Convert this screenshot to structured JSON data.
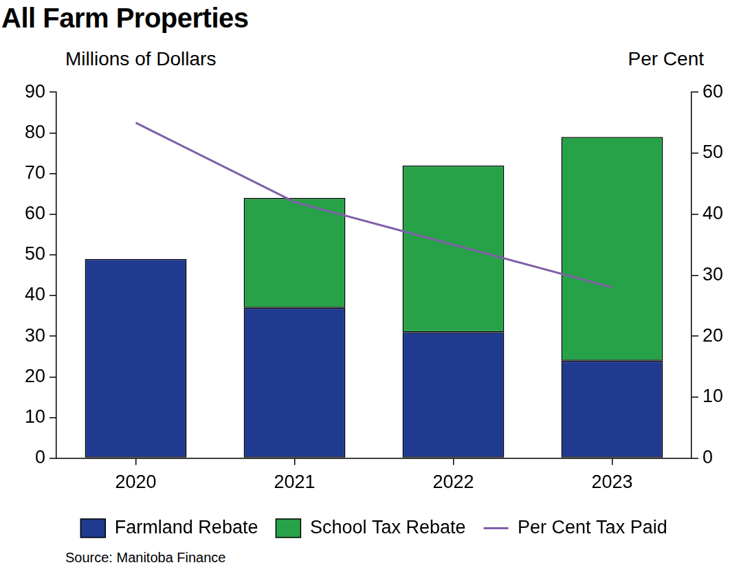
{
  "chart_data": {
    "type": "bar",
    "title": "All Farm Properties",
    "y_label": "Millions of Dollars",
    "y2_label": "Per Cent",
    "source": "Source: Manitoba Finance",
    "categories": [
      "2020",
      "2021",
      "2022",
      "2023"
    ],
    "stacked": true,
    "grid": false,
    "legend": "bottom",
    "series": [
      {
        "name": "Farmland Rebate",
        "type": "bar",
        "color": "#1f3a8f",
        "values": [
          49,
          37,
          31,
          24
        ]
      },
      {
        "name": "School Tax Rebate",
        "type": "bar",
        "color": "#28a249",
        "values": [
          null,
          27,
          41,
          55
        ]
      },
      {
        "name": "Per Cent Tax Paid",
        "type": "line",
        "axis": "y2",
        "color": "#7f5fa8",
        "marker": "none",
        "line_style": "solid",
        "values": [
          55,
          42,
          35,
          28
        ]
      }
    ],
    "ylim": [
      0,
      90
    ],
    "yticks": [
      0,
      10,
      20,
      30,
      40,
      50,
      60,
      70,
      80,
      90
    ],
    "y2lim": [
      0,
      60
    ],
    "y2ticks": [
      0,
      10,
      20,
      30,
      40,
      50,
      60
    ]
  }
}
